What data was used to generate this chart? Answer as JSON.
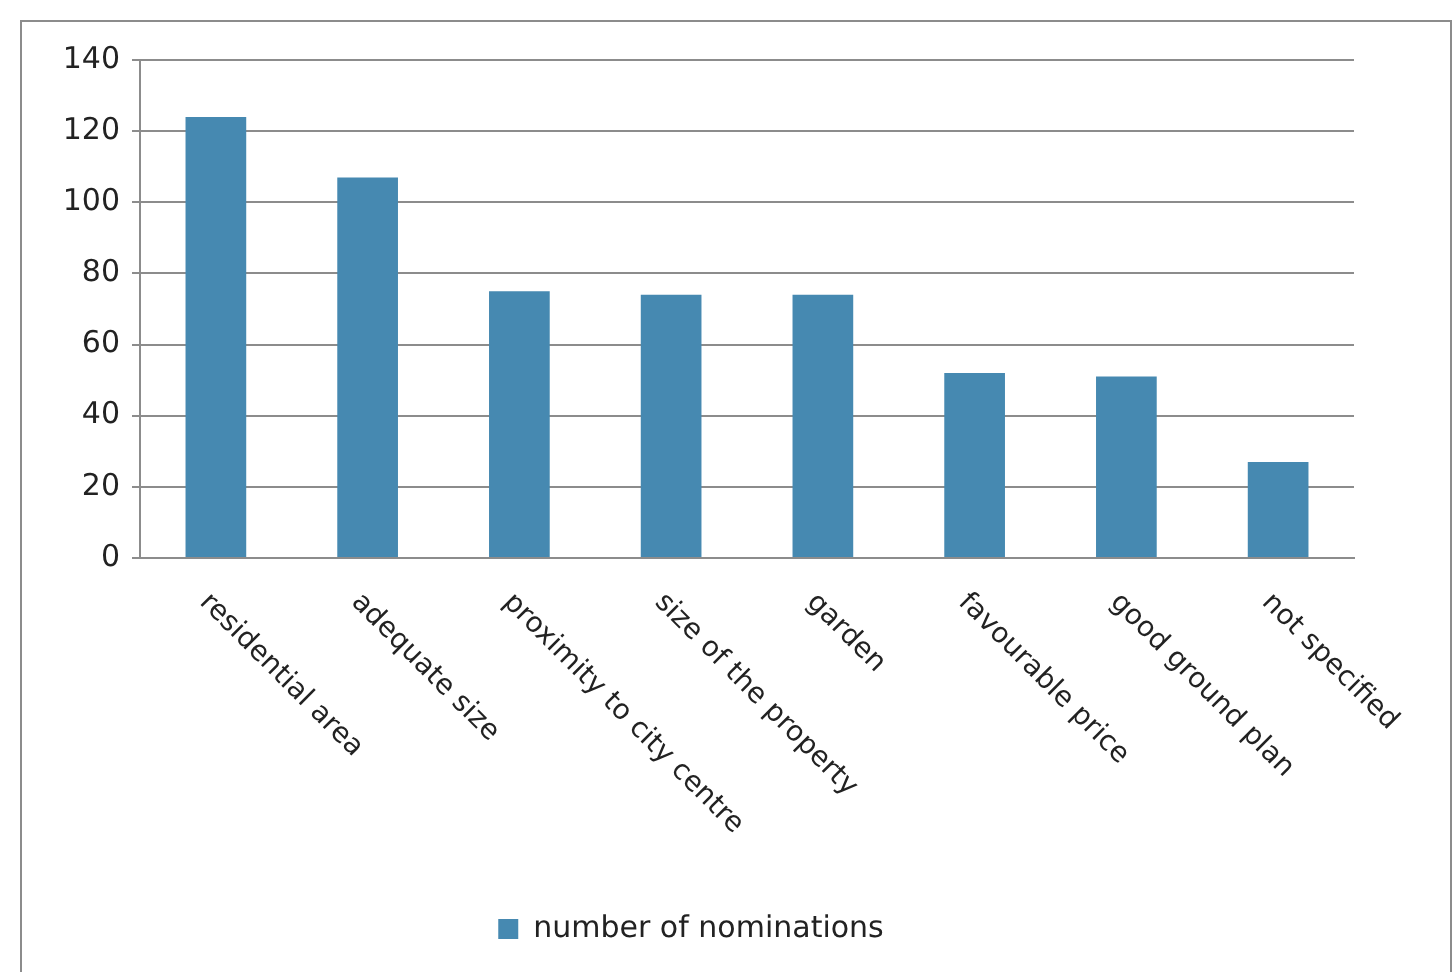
{
  "chart_data": {
    "type": "bar",
    "categories": [
      "residential area",
      "adequate size",
      "proximity to city centre",
      "size of the property",
      "garden",
      "favourable price",
      "good ground plan",
      "not specified"
    ],
    "series": [
      {
        "name": "number of nominations",
        "color": "#4689b1",
        "values": [
          124,
          107,
          75,
          74,
          74,
          52,
          51,
          27
        ]
      }
    ],
    "ylim": [
      0,
      140
    ],
    "yticks": [
      0,
      20,
      40,
      60,
      80,
      100,
      120,
      140
    ],
    "grid": "y",
    "legend": "bottom"
  }
}
